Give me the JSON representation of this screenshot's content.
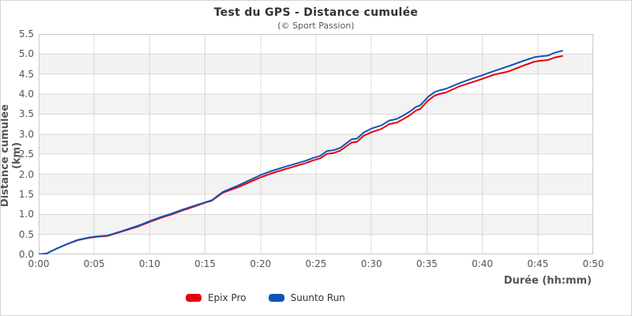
{
  "chart": {
    "title": "Test du GPS - Distance cumulée",
    "subtitle": "(© Sport Passion)",
    "x_axis": {
      "title": "Durée (hh:mm)",
      "tick_minutes": [
        0,
        5,
        10,
        15,
        20,
        25,
        30,
        35,
        40,
        45,
        50
      ],
      "tick_labels": [
        "0:00",
        "0:05",
        "0:10",
        "0:15",
        "0:20",
        "0:25",
        "0:30",
        "0:35",
        "0:40",
        "0:45",
        "0:50"
      ]
    },
    "y_axis": {
      "title": "Distance cumulée (km)",
      "tick_values": [
        0,
        0.5,
        1,
        1.5,
        2,
        2.5,
        3,
        3.5,
        4,
        4.5,
        5,
        5.5
      ],
      "tick_labels": [
        "0.0",
        "0.5",
        "1.0",
        "1.5",
        "2.0",
        "2.5",
        "3.0",
        "3.5",
        "4.0",
        "4.5",
        "5.0",
        "5.5"
      ]
    },
    "colors": {
      "grid_line": "#d9d9d9",
      "plot_border": "#c9c9c9",
      "band_fill": "#f3f3f3",
      "title_text": "#333333",
      "axis_text": "#555555"
    }
  },
  "chart_data": {
    "type": "line",
    "title": "Test du GPS - Distance cumulée",
    "subtitle": "(© Sport Passion)",
    "xlabel": "Durée (hh:mm)",
    "ylabel": "Distance cumulée (km)",
    "x_unit": "minutes",
    "xlim": [
      0,
      50
    ],
    "ylim": [
      0,
      5.5
    ],
    "grid": true,
    "alternating_bands": true,
    "legend_position": "bottom",
    "x": [
      0,
      0.7,
      1.5,
      2.5,
      3.5,
      4.5,
      5.2,
      6.2,
      7.5,
      9,
      10,
      11,
      12,
      13,
      14,
      15,
      15.6,
      16.6,
      18,
      19,
      20,
      21,
      22,
      23,
      24,
      24.8,
      25.4,
      26.0,
      26.6,
      27.2,
      28.2,
      28.7,
      29.3,
      30,
      30.9,
      31.6,
      32.3,
      32.9,
      33.5,
      34.0,
      34.4,
      35.1,
      35.7,
      36.1,
      36.7,
      38,
      39,
      40,
      41,
      42.3,
      43.7,
      44.7,
      45.2,
      45.9,
      46.5,
      47.2
    ],
    "series": [
      {
        "name": "Epix Pro",
        "color": "#e8000d",
        "values": [
          0,
          0.02,
          0.13,
          0.25,
          0.35,
          0.41,
          0.44,
          0.46,
          0.57,
          0.7,
          0.81,
          0.91,
          1.0,
          1.1,
          1.19,
          1.29,
          1.34,
          1.54,
          1.68,
          1.8,
          1.92,
          2.02,
          2.11,
          2.19,
          2.27,
          2.35,
          2.4,
          2.51,
          2.53,
          2.59,
          2.79,
          2.81,
          2.96,
          3.05,
          3.13,
          3.25,
          3.29,
          3.38,
          3.48,
          3.59,
          3.63,
          3.84,
          3.96,
          4.0,
          4.04,
          4.2,
          4.29,
          4.38,
          4.48,
          4.56,
          4.71,
          4.81,
          4.83,
          4.85,
          4.91,
          4.95
        ]
      },
      {
        "name": "Suunto Run",
        "color": "#1154b8",
        "values": [
          0,
          0.02,
          0.13,
          0.25,
          0.36,
          0.42,
          0.45,
          0.47,
          0.58,
          0.72,
          0.83,
          0.93,
          1.02,
          1.12,
          1.21,
          1.3,
          1.35,
          1.56,
          1.72,
          1.85,
          1.98,
          2.08,
          2.17,
          2.25,
          2.33,
          2.41,
          2.46,
          2.58,
          2.6,
          2.66,
          2.87,
          2.89,
          3.04,
          3.14,
          3.22,
          3.34,
          3.38,
          3.47,
          3.57,
          3.68,
          3.72,
          3.93,
          4.05,
          4.09,
          4.13,
          4.28,
          4.38,
          4.47,
          4.57,
          4.69,
          4.83,
          4.92,
          4.94,
          4.96,
          5.03,
          5.08
        ]
      }
    ]
  }
}
